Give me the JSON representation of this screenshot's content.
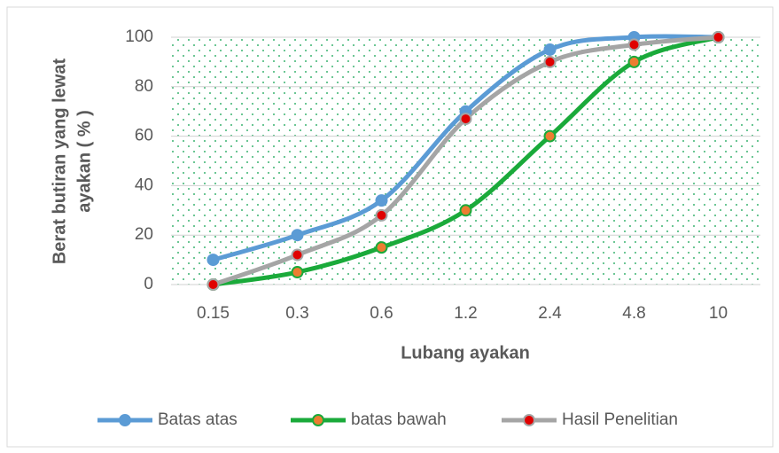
{
  "chart_data": {
    "type": "line",
    "x_label": "Lubang ayakan",
    "y_label": [
      "Berat butiran yang lewat",
      "ayakan ( % )"
    ],
    "categories": [
      "0.15",
      "0.3",
      "0.6",
      "1.2",
      "2.4",
      "4.8",
      "10"
    ],
    "series": [
      {
        "name": "Batas atas",
        "color": "#5b9bd5",
        "marker_color": "#5b9bd5",
        "values": [
          10,
          20,
          34,
          70,
          95,
          100,
          100
        ]
      },
      {
        "name": "batas bawah",
        "color": "#1aaa3a",
        "marker_color": "#ed7d31",
        "values": [
          0,
          5,
          15,
          30,
          60,
          90,
          100
        ]
      },
      {
        "name": "Hasil Penelitian",
        "color": "#a5a5a5",
        "marker_color": "#e00000",
        "values": [
          0,
          12,
          28,
          67,
          90,
          97,
          100
        ]
      }
    ],
    "ylim": [
      0,
      100
    ],
    "yticks": [
      0,
      20,
      40,
      60,
      80,
      100
    ],
    "grid": true,
    "legend": "bottom"
  }
}
